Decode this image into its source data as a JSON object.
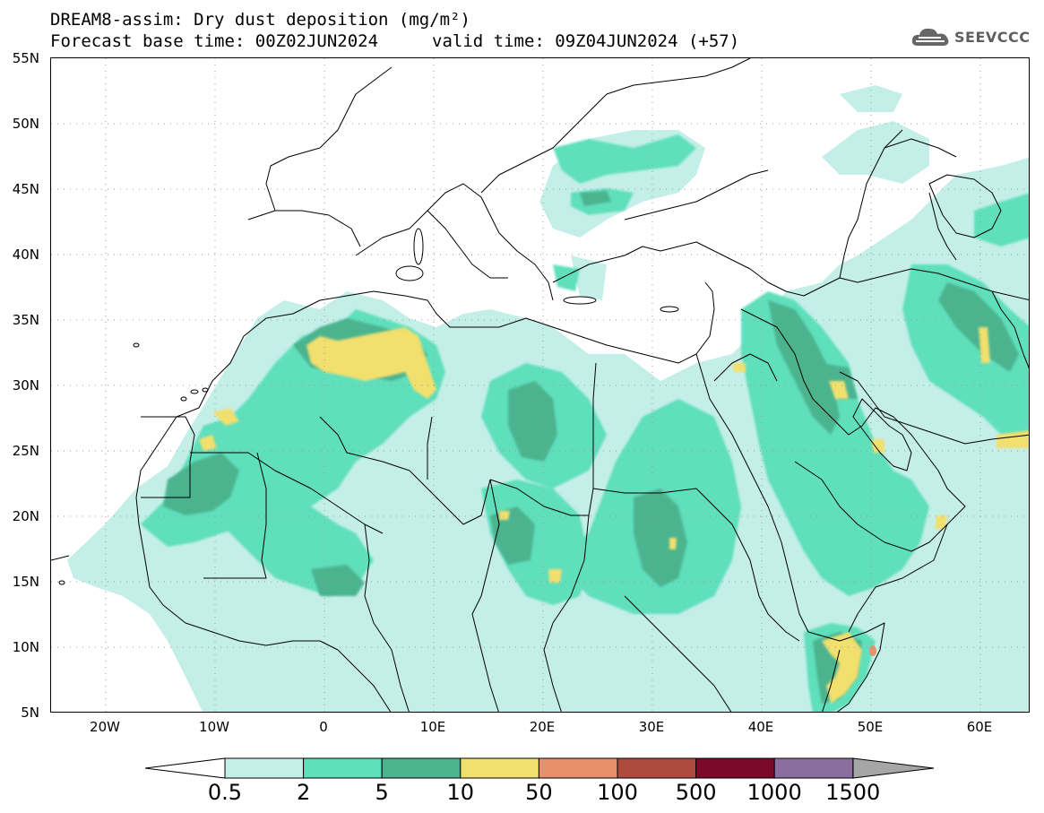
{
  "header": {
    "title_line1": "DREAM8-assim: Dry dust deposition (mg/m²)",
    "title_line2": "Forecast base time: 00Z02JUN2024",
    "valid_time": "valid time: 09Z04JUN2024 (+57)",
    "logo_text": "SEEVCCC",
    "logo_icon": "cloud-logo-icon"
  },
  "axes": {
    "lat_labels": [
      "55N",
      "50N",
      "45N",
      "40N",
      "35N",
      "30N",
      "25N",
      "20N",
      "15N",
      "10N",
      "5N"
    ],
    "lon_labels": [
      "20W",
      "10W",
      "0",
      "10E",
      "20E",
      "30E",
      "40E",
      "50E",
      "60E"
    ]
  },
  "legend": {
    "labels": [
      "0.5",
      "2",
      "5",
      "10",
      "50",
      "100",
      "500",
      "1000",
      "1500"
    ],
    "colors": [
      "#c4efe9",
      "#5edfbc",
      "#4bb48f",
      "#f1df6e",
      "#e8906a",
      "#ae4b3e",
      "#7b0a2a",
      "#8a6ea0"
    ],
    "below_color": "#ffffff",
    "above_color": "#a6a6a6"
  },
  "map": {
    "region": "North Africa, Europe and Middle East",
    "field": "Dry dust deposition",
    "units": "mg/m²",
    "colors": {
      "level_0_5": "#c4efe9",
      "level_2": "#5edfbc",
      "level_5": "#4bb48f",
      "level_10": "#f1df6e",
      "level_50": "#e8906a",
      "border": "#000000"
    }
  }
}
